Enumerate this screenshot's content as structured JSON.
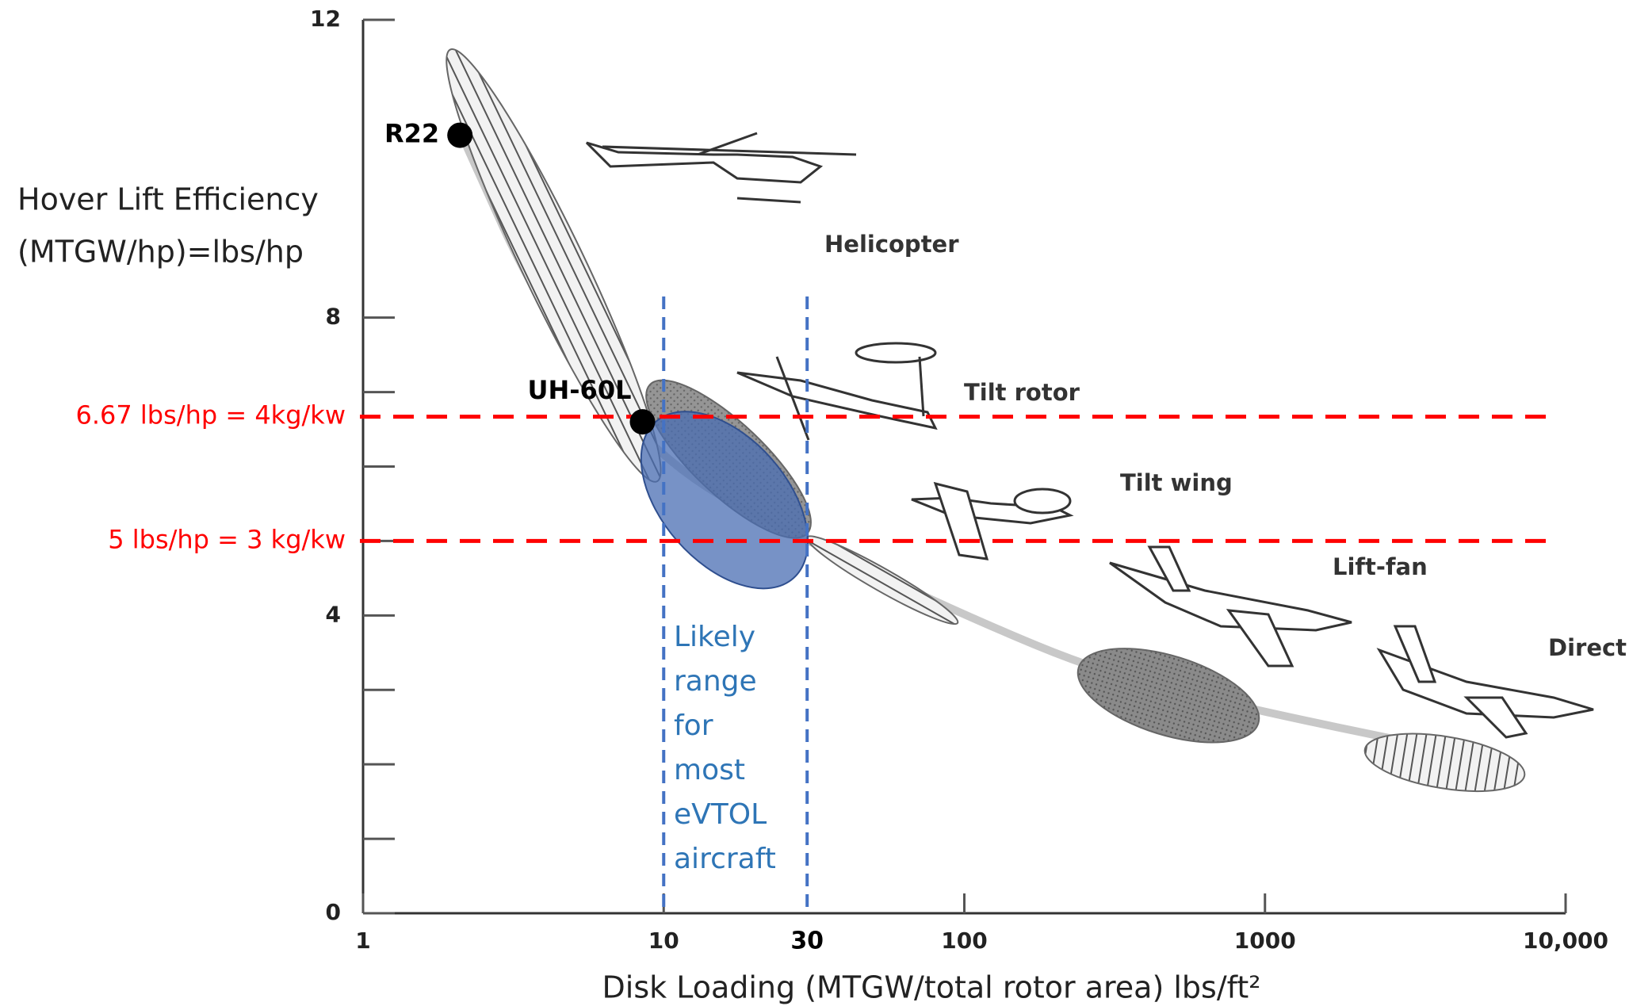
{
  "chart_data": {
    "type": "scatter",
    "ylabel": [
      "Hover Lift Efficiency",
      "(MTGW/hp)=lbs/hp"
    ],
    "xlabel": "Disk Loading (MTGW/total rotor area)  lbs/ft²",
    "log_x": true,
    "xlim": [
      1,
      10000
    ],
    "ylim": [
      0,
      12
    ],
    "xticks": [
      1,
      10,
      100,
      1000,
      {
        "value": 10000,
        "label": "10,000"
      }
    ],
    "xticks_extra": [
      30
    ],
    "yticks": [
      0,
      4,
      8,
      12
    ],
    "minor_yticks": [
      1,
      2,
      3,
      5,
      6,
      7
    ],
    "points": {
      "labels": [
        "R22",
        "UH-60L"
      ],
      "x": [
        2.1,
        8.5
      ],
      "y": [
        10.45,
        6.6
      ],
      "color": "#000000"
    },
    "trend": {
      "x": [
        2.1,
        4,
        10,
        30,
        100,
        300,
        1000,
        3000
      ],
      "y": [
        10.5,
        8,
        6,
        5,
        4,
        3.2,
        2.7,
        2.3
      ],
      "color": "#c8c8c8"
    },
    "regions": [
      {
        "style": "hatched",
        "from": [
          1.95,
          11.6
        ],
        "to": [
          9.5,
          5.8
        ]
      },
      {
        "style": "gray",
        "from": [
          9,
          7.1
        ],
        "to": [
          30,
          5.1
        ]
      },
      {
        "style": "hatched",
        "from": [
          30,
          5.05
        ],
        "to": [
          95,
          3.9
        ]
      },
      {
        "style": "dark",
        "from": [
          240,
          3.3
        ],
        "to": [
          950,
          2.55
        ]
      },
      {
        "style": "vhatched",
        "from": [
          2150,
          2.2
        ],
        "to": [
          7300,
          1.85
        ]
      },
      {
        "style": "blue",
        "from": [
          9.4,
          6.6
        ],
        "to": [
          27,
          4.5
        ]
      }
    ],
    "region_labels": [
      "Helicopter",
      "Tilt rotor",
      "Tilt wing",
      "Lift-fan",
      "Direct"
    ],
    "hlines": [
      {
        "value": 6.67,
        "label": "6.67 lbs/hp = 4kg/kw"
      },
      {
        "value": 5,
        "label": "5 lbs/hp = 3 kg/kw"
      }
    ],
    "hline_color": "#ff0000",
    "vlines": [
      10,
      30
    ],
    "vline_color": "#4472c4",
    "vline_text": [
      "Likely",
      "range",
      "for",
      "most",
      "eVTOL",
      "aircraft"
    ]
  }
}
